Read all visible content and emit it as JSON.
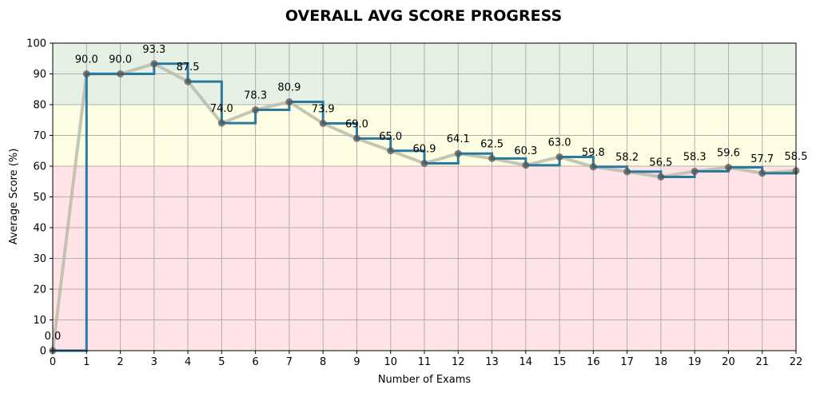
{
  "chart_data": {
    "type": "line",
    "title": "OVERALL AVG SCORE PROGRESS",
    "xlabel": "Number of Exams",
    "ylabel": "Average Score (%)",
    "xlim": [
      0,
      22
    ],
    "ylim": [
      0,
      100
    ],
    "x_ticks": [
      0,
      1,
      2,
      3,
      4,
      5,
      6,
      7,
      8,
      9,
      10,
      11,
      12,
      13,
      14,
      15,
      16,
      17,
      18,
      19,
      20,
      21,
      22
    ],
    "y_ticks": [
      0,
      10,
      20,
      30,
      40,
      50,
      60,
      70,
      80,
      90,
      100
    ],
    "grid": true,
    "bands": [
      {
        "from": 0,
        "to": 60,
        "color": "#ffe3e6"
      },
      {
        "from": 60,
        "to": 80,
        "color": "#fefee3"
      },
      {
        "from": 80,
        "to": 100,
        "color": "#e6f1e6"
      }
    ],
    "x": [
      0,
      1,
      2,
      3,
      4,
      5,
      6,
      7,
      8,
      9,
      10,
      11,
      12,
      13,
      14,
      15,
      16,
      17,
      18,
      19,
      20,
      21,
      22
    ],
    "values": [
      0.0,
      90.0,
      90.0,
      93.3,
      87.5,
      74.0,
      78.3,
      80.9,
      73.9,
      69.0,
      65.0,
      60.9,
      64.1,
      62.5,
      60.3,
      63.0,
      59.8,
      58.2,
      56.5,
      58.3,
      59.6,
      57.7,
      58.5
    ],
    "data_labels": [
      "0.0",
      "90.0",
      "90.0",
      "93.3",
      "87.5",
      "74.0",
      "78.3",
      "80.9",
      "73.9",
      "69.0",
      "65.0",
      "60.9",
      "64.1",
      "62.5",
      "60.3",
      "63.0",
      "59.8",
      "58.2",
      "56.5",
      "58.3",
      "59.6",
      "57.7",
      "58.5"
    ],
    "colors": {
      "step_line": "#2a7aa0",
      "trend_line": "#b5b9a8",
      "markers": "#555555",
      "grid": "#b0b0b0"
    }
  }
}
